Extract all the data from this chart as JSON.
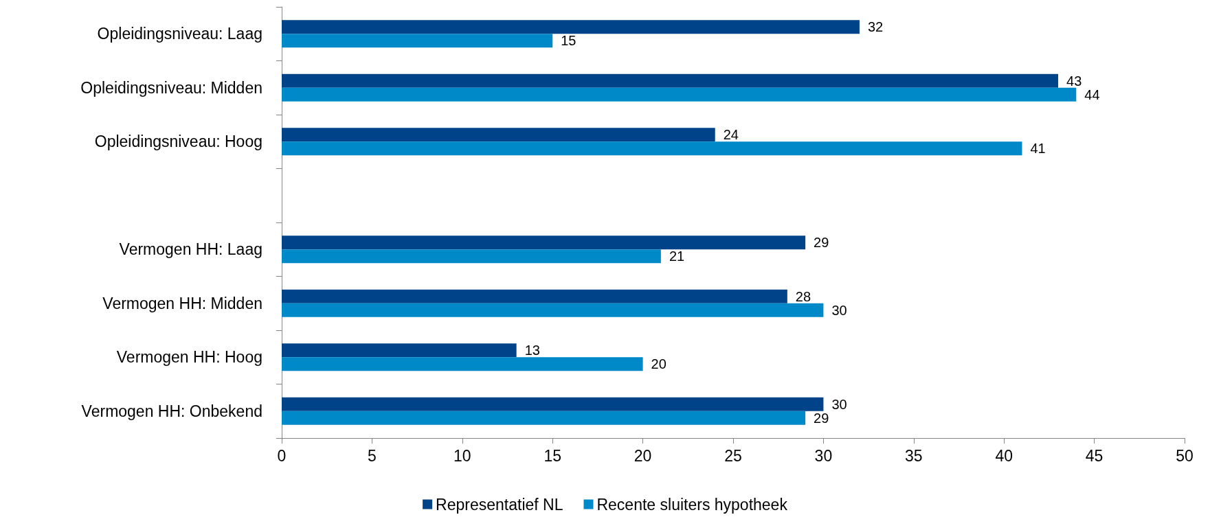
{
  "chart_data": {
    "type": "bar",
    "orientation": "horizontal",
    "categories": [
      "Opleidingsniveau: Laag",
      "Opleidingsniveau: Midden",
      "Opleidingsniveau: Hoog",
      null,
      "Vermogen HH: Laag",
      "Vermogen HH: Midden",
      "Vermogen HH: Hoog",
      "Vermogen HH: Onbekend"
    ],
    "series": [
      {
        "name": "Representatief NL",
        "color": "#004388",
        "values": [
          32,
          43,
          24,
          null,
          29,
          28,
          13,
          30
        ]
      },
      {
        "name": "Recente sluiters hypotheek",
        "color": "#0089c9",
        "values": [
          15,
          44,
          41,
          null,
          21,
          30,
          20,
          29
        ]
      }
    ],
    "xlim": [
      0,
      50
    ],
    "xticks": [
      0,
      5,
      10,
      15,
      20,
      25,
      30,
      35,
      40,
      45,
      50
    ],
    "data_labels": true,
    "grid": false,
    "legend": "bottom"
  }
}
